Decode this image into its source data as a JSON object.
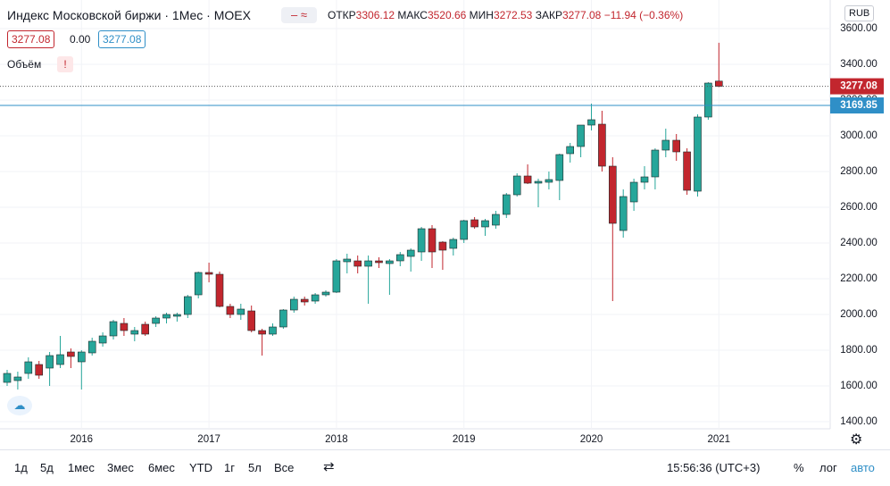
{
  "chart_data": {
    "type": "candlestick",
    "title": "Индекс Московской биржи · 1Мес · MOEX",
    "legend": {
      "open_label": "ОТКР",
      "high_label": "МАКС",
      "low_label": "МИН",
      "close_label": "ЗАКР",
      "change": "−11.94 (−0.36%)",
      "spread": "0.00",
      "volume_label": "Объём",
      "currency": "RUB"
    },
    "categories": [
      null,
      null,
      null,
      null,
      null,
      null,
      null,
      "2016",
      null,
      null,
      null,
      null,
      null,
      null,
      null,
      null,
      null,
      null,
      null,
      "2017",
      null,
      null,
      null,
      null,
      null,
      null,
      null,
      null,
      null,
      null,
      null,
      "2018",
      null,
      null,
      null,
      null,
      null,
      null,
      null,
      null,
      null,
      null,
      null,
      "2019",
      null,
      null,
      null,
      null,
      null,
      null,
      null,
      null,
      null,
      null,
      null,
      "2020",
      null,
      null,
      null,
      null,
      null,
      null,
      null,
      null,
      null,
      null,
      null,
      "2021"
    ],
    "open": [
      1620,
      1630,
      1670,
      1720,
      1700,
      1720,
      1790,
      1735,
      1785,
      1840,
      1880,
      1950,
      1890,
      1945,
      1950,
      1980,
      1990,
      2000,
      2110,
      2235,
      2225,
      2045,
      2000,
      2020,
      1910,
      1890,
      1930,
      2025,
      2085,
      2075,
      2110,
      2125,
      2295,
      2300,
      2270,
      2300,
      2285,
      2300,
      2325,
      2350,
      2480,
      2405,
      2370,
      2420,
      2530,
      2490,
      2500,
      2560,
      2670,
      2775,
      2735,
      2740,
      2750,
      2900,
      2940,
      3060,
      3065,
      2830,
      2470,
      2630,
      2740,
      2770,
      2920,
      2975,
      2910,
      2690,
      3105,
      3306.12
    ],
    "high": [
      1690,
      1680,
      1760,
      1740,
      1790,
      1880,
      1810,
      1800,
      1870,
      1900,
      1970,
      1980,
      1930,
      1960,
      1990,
      2010,
      2010,
      2110,
      2240,
      2290,
      2240,
      2060,
      2060,
      2050,
      1920,
      1950,
      2030,
      2100,
      2100,
      2120,
      2135,
      2310,
      2340,
      2330,
      2330,
      2320,
      2310,
      2350,
      2370,
      2490,
      2500,
      2410,
      2430,
      2530,
      2545,
      2535,
      2580,
      2680,
      2790,
      2840,
      2760,
      2800,
      2900,
      2960,
      3060,
      3180,
      3140,
      2880,
      2700,
      2760,
      2830,
      2930,
      3040,
      3010,
      2930,
      3120,
      3300,
      3520.66
    ],
    "low": [
      1600,
      1580,
      1640,
      1640,
      1600,
      1700,
      1700,
      1580,
      1770,
      1820,
      1860,
      1880,
      1850,
      1880,
      1930,
      1950,
      1960,
      1980,
      2090,
      2180,
      2040,
      1980,
      1970,
      1900,
      1770,
      1880,
      1920,
      2010,
      2050,
      2060,
      2100,
      2120,
      2230,
      2230,
      2060,
      2260,
      2110,
      2270,
      2240,
      2300,
      2260,
      2250,
      2330,
      2400,
      2480,
      2440,
      2480,
      2540,
      2660,
      2730,
      2600,
      2700,
      2640,
      2850,
      2880,
      3030,
      2800,
      2075,
      2430,
      2580,
      2700,
      2700,
      2880,
      2860,
      2670,
      2660,
      3090,
      3272.53
    ],
    "close": [
      1670,
      1650,
      1735,
      1660,
      1770,
      1775,
      1765,
      1790,
      1850,
      1880,
      1960,
      1910,
      1910,
      1890,
      1980,
      2000,
      2000,
      2100,
      2235,
      2225,
      2045,
      2000,
      2030,
      1910,
      1890,
      1930,
      2025,
      2085,
      2070,
      2110,
      2125,
      2300,
      2310,
      2270,
      2300,
      2290,
      2300,
      2335,
      2360,
      2480,
      2350,
      2360,
      2420,
      2525,
      2490,
      2525,
      2560,
      2670,
      2775,
      2735,
      2745,
      2755,
      2895,
      2940,
      3060,
      3090,
      2830,
      2510,
      2660,
      2740,
      2770,
      2920,
      2975,
      2910,
      2695,
      3105,
      3295,
      3277.08
    ],
    "up_color": "#26a69a",
    "down_color": "#c2262e",
    "horizontal_line": 3169.85,
    "horizontal_line_color": "#2f8fc7",
    "ylim": [
      1360,
      3760
    ],
    "yticks": [
      {
        "value": 1400,
        "label": "1400.00"
      },
      {
        "value": 1600,
        "label": "1600.00"
      },
      {
        "value": 1800,
        "label": "1800.00"
      },
      {
        "value": 2000,
        "label": "2000.00"
      },
      {
        "value": 2200,
        "label": "2200.00"
      },
      {
        "value": 2400,
        "label": "2400.00"
      },
      {
        "value": 2600,
        "label": "2600.00"
      },
      {
        "value": 2800,
        "label": "2800.00"
      },
      {
        "value": 3000,
        "label": "3000.00"
      },
      {
        "value": 3200,
        "label": "3200.00"
      },
      {
        "value": 3400,
        "label": "3400.00"
      },
      {
        "value": 3600,
        "label": "3600.00"
      }
    ],
    "grid": true
  },
  "toolbar": {
    "ranges": [
      "1д",
      "5д",
      "1мес",
      "3мес",
      "6мес",
      "YTD",
      "1г",
      "5л",
      "Все"
    ],
    "time": "15:56:36 (UTC+3)",
    "percent": "%",
    "log": "лог",
    "auto": "авто"
  }
}
